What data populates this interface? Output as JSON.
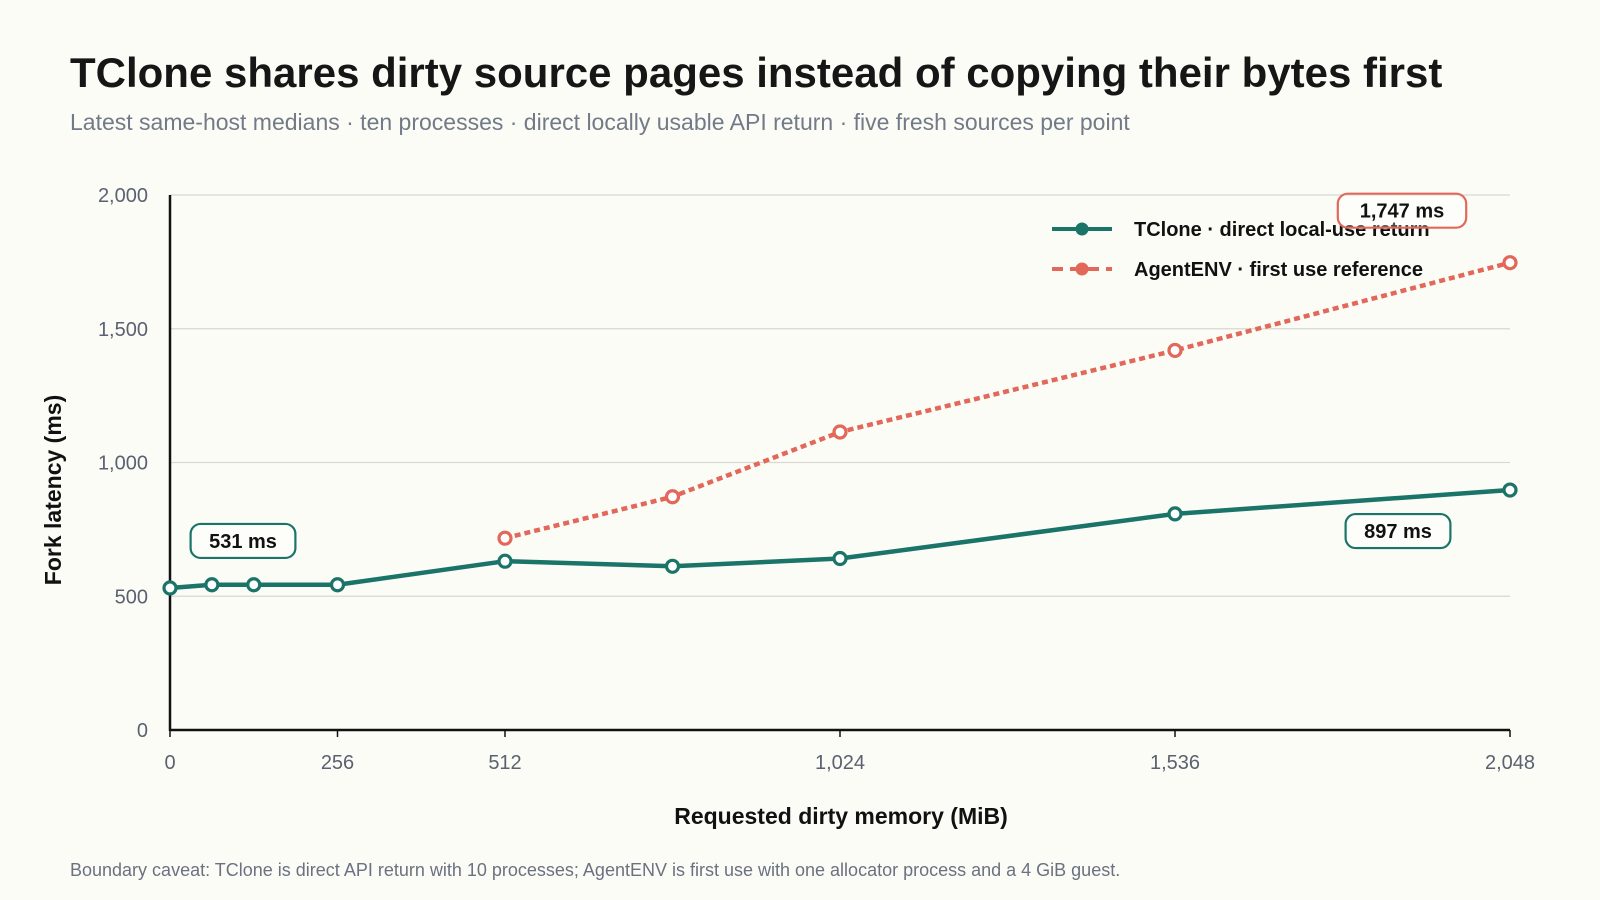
{
  "chart_data": {
    "type": "line",
    "title": "TClone shares dirty source pages instead of copying their bytes first",
    "subtitle": "Latest same-host medians · ten processes · direct locally usable API return · five fresh sources per point",
    "xlabel": "Requested dirty memory (MiB)",
    "ylabel": "Fork latency (ms)",
    "xlim": [
      0,
      2048
    ],
    "ylim": [
      0,
      2000
    ],
    "x_ticks": [
      0,
      256,
      512,
      1024,
      1536,
      2048
    ],
    "x_tick_labels": [
      "0",
      "256",
      "512",
      "1,024",
      "1,536",
      "2,048"
    ],
    "y_ticks": [
      0,
      500,
      1000,
      1500,
      2000
    ],
    "y_tick_labels": [
      "0",
      "500",
      "1,000",
      "1,500",
      "2,000"
    ],
    "grid": "horizontal",
    "legend_position": "top-right",
    "series": [
      {
        "name": "TClone · direct local-use return",
        "color": "#1a7468",
        "line_style": "solid",
        "x": [
          0,
          64,
          128,
          256,
          512,
          768,
          1024,
          1536,
          2048
        ],
        "y": [
          531,
          543,
          543,
          543,
          631,
          612,
          641,
          808,
          897
        ]
      },
      {
        "name": "AgentENV · first use reference",
        "color": "#e2685a",
        "line_style": "dotted",
        "x": [
          512,
          768,
          1024,
          1536,
          2048
        ],
        "y": [
          717,
          872,
          1114,
          1419,
          1747
        ]
      }
    ],
    "annotations": [
      {
        "series": 0,
        "point": 0,
        "text": "531 ms"
      },
      {
        "series": 0,
        "point": 8,
        "text": "897 ms"
      },
      {
        "series": 1,
        "point": 4,
        "text": "1,747 ms"
      }
    ],
    "footnote": "Boundary caveat: TClone is direct API return with 10 processes; AgentENV is first use with one allocator process and a 4 GiB guest."
  }
}
